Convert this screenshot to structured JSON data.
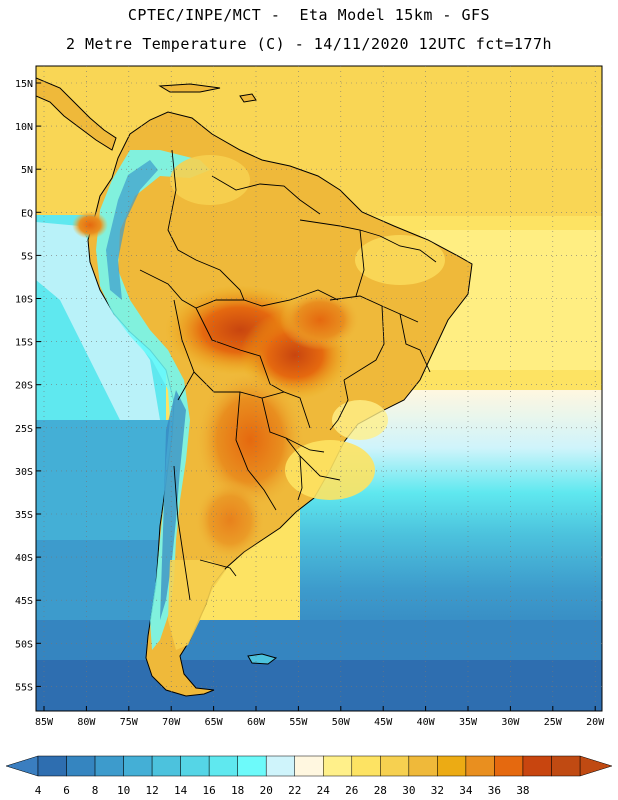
{
  "header": {
    "line1": "CPTEC/INPE/MCT -  Eta Model 15km - GFS",
    "line2": "2 Metre Temperature (C) - 14/11/2020 12UTC fct=177h"
  },
  "map": {
    "lat_labels": [
      "15N",
      "10N",
      "5N",
      "EQ",
      "5S",
      "10S",
      "15S",
      "20S",
      "25S",
      "30S",
      "35S",
      "40S",
      "45S",
      "50S",
      "55S"
    ],
    "lon_labels": [
      "85W",
      "80W",
      "75W",
      "70W",
      "65W",
      "60W",
      "55W",
      "50W",
      "45W",
      "40W",
      "35W",
      "30W",
      "25W",
      "20W"
    ],
    "lat_range": [
      17.5,
      -57.5
    ],
    "lon_range": [
      -86,
      -19
    ]
  },
  "colorbar": {
    "labels": [
      "4",
      "6",
      "8",
      "10",
      "12",
      "14",
      "16",
      "18",
      "20",
      "22",
      "24",
      "26",
      "28",
      "30",
      "32",
      "34",
      "36",
      "38"
    ],
    "below_color": "#3a7ec0",
    "above_color": "#c04a12",
    "colors": [
      "#2e6eb0",
      "#3585c0",
      "#3d9bcc",
      "#44afd6",
      "#4cc2dd",
      "#55d5e6",
      "#5fe8ef",
      "#6dfafa",
      "#cff4fb",
      "#fff7e0",
      "#fff08a",
      "#fde363",
      "#f6d050",
      "#efb93a",
      "#ecab14",
      "#e98f1f",
      "#e5690f",
      "#c8450f",
      "#c04a12"
    ]
  }
}
